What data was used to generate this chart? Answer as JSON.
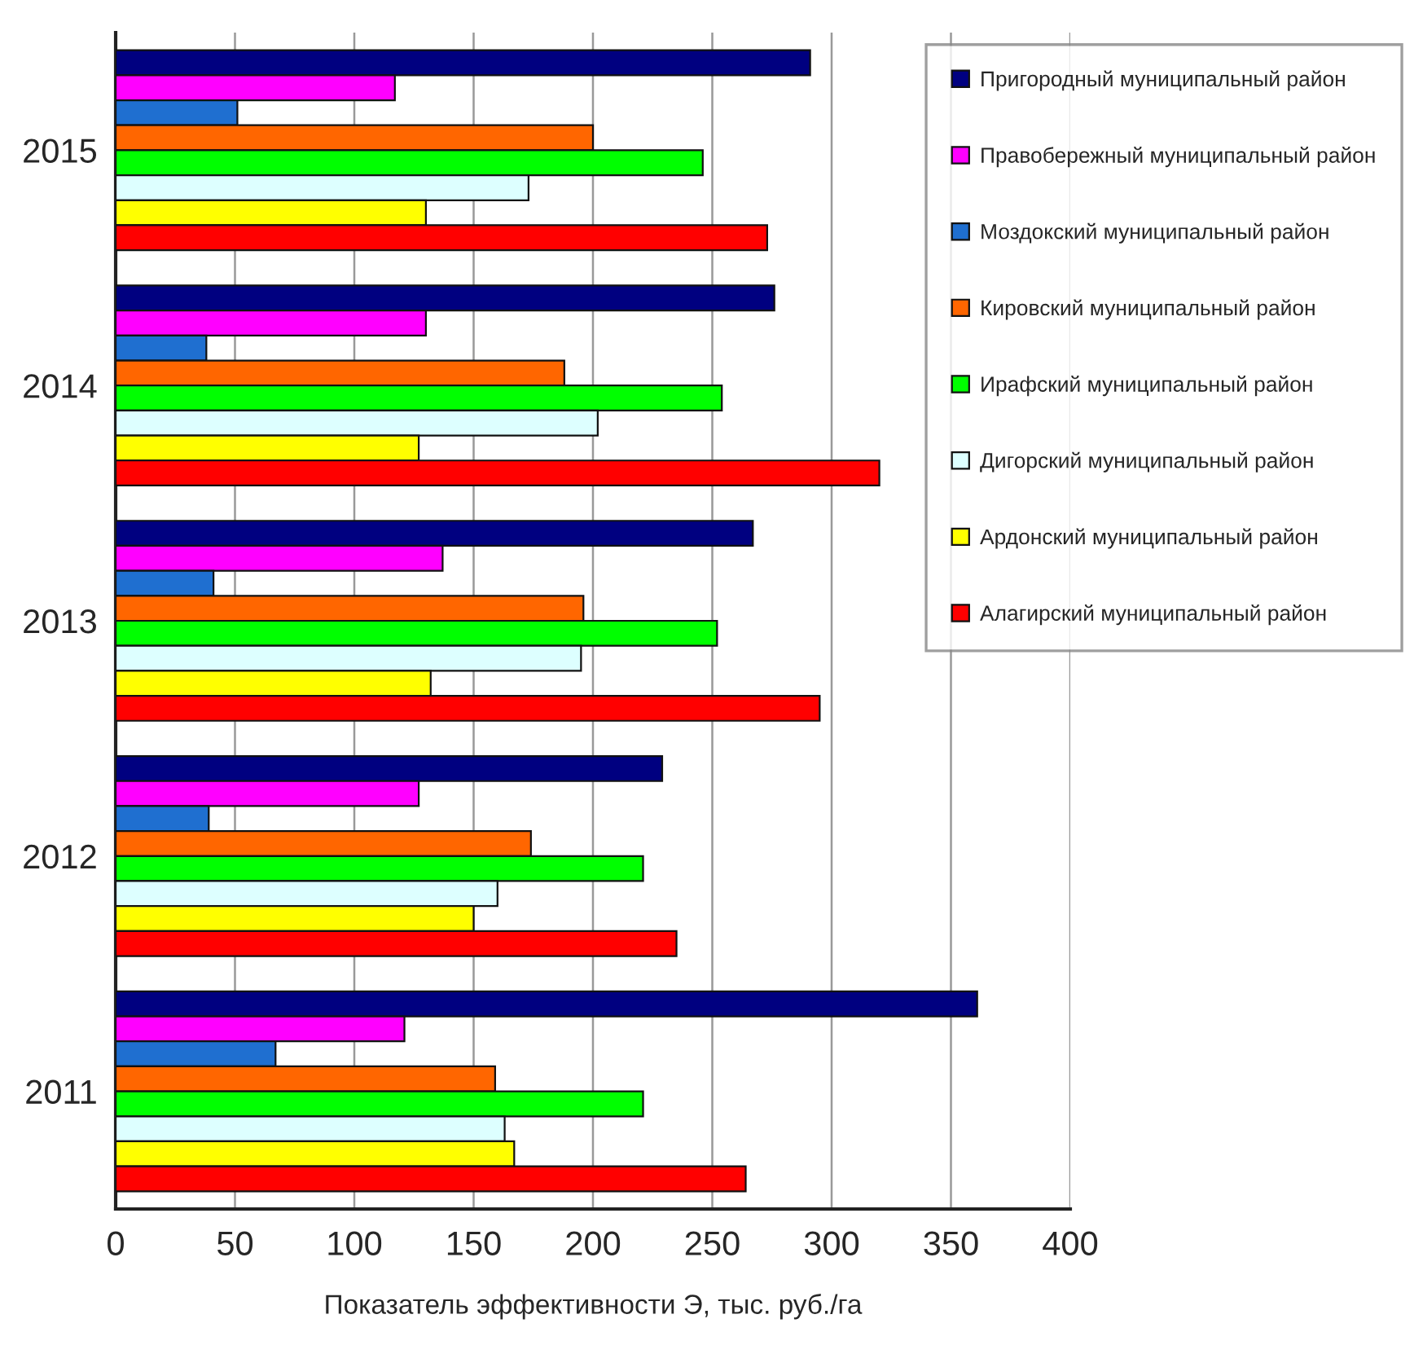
{
  "chart_data": {
    "type": "bar",
    "orientation": "horizontal",
    "categories": [
      "2015",
      "2014",
      "2013",
      "2012",
      "2011"
    ],
    "series": [
      {
        "name": "Пригородный муниципальный район",
        "color": "#000080",
        "values": [
          291,
          276,
          267,
          229,
          361
        ]
      },
      {
        "name": "Правобережный муниципальный район",
        "color": "#ff00ff",
        "values": [
          117,
          130,
          137,
          127,
          121
        ]
      },
      {
        "name": "Моздокский муниципальный район",
        "color": "#1f6fd0",
        "values": [
          51,
          38,
          41,
          39,
          67
        ]
      },
      {
        "name": "Кировский муниципальный район",
        "color": "#ff6600",
        "values": [
          200,
          188,
          196,
          174,
          159
        ]
      },
      {
        "name": "Ирафский муниципальный район",
        "color": "#00ff00",
        "values": [
          246,
          254,
          252,
          221,
          221
        ]
      },
      {
        "name": "Дигорский муниципальный район",
        "color": "#ddffff",
        "values": [
          173,
          202,
          195,
          160,
          163
        ]
      },
      {
        "name": "Ардонский муниципальный район",
        "color": "#ffff00",
        "values": [
          130,
          127,
          132,
          150,
          167
        ]
      },
      {
        "name": "Алагирский муниципальный район",
        "color": "#ff0000",
        "values": [
          273,
          320,
          295,
          235,
          264
        ]
      }
    ],
    "xlabel": "Показатель эффективности Э, тыс. руб./га",
    "xlim": [
      0,
      400
    ],
    "xticks": [
      0,
      50,
      100,
      150,
      200,
      250,
      300,
      350,
      400
    ],
    "grid": "x",
    "legend": "top right"
  }
}
